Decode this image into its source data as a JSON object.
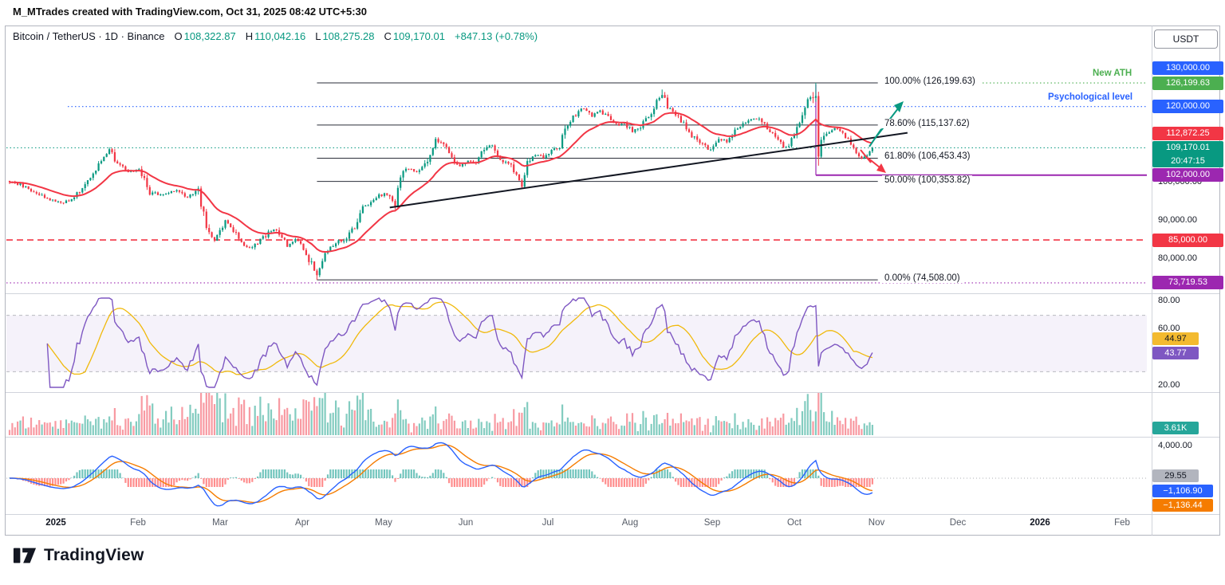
{
  "attribution": "M_MTrades created with TradingView.com, Oct 31, 2025 08:42 UTC+5:30",
  "sym": {
    "title": "Bitcoin / TetherUS · 1D · Binance",
    "o_k": "O",
    "o_v": "108,322.87",
    "h_k": "H",
    "h_v": "110,042.16",
    "l_k": "L",
    "l_v": "108,275.28",
    "c_k": "C",
    "c_v": "109,170.01",
    "chg": "+847.13 (+0.78%)",
    "currency": "USDT"
  },
  "annotations": {
    "new_ath": "New ATH",
    "psych_level": "Psychological level",
    "fib_labels": [
      {
        "label": "100.00% (126,199.63)",
        "price": 126199.63
      },
      {
        "label": "78.60% (115,137.62)",
        "price": 115137.62
      },
      {
        "label": "61.80% (106,453.43)",
        "price": 106453.43
      },
      {
        "label": "50.00% (100,353.82)",
        "price": 100353.82
      },
      {
        "label": "0.00% (74,508.00)",
        "price": 74508.0
      }
    ]
  },
  "price_axis": [
    {
      "text": "130,000.00",
      "price": 130000,
      "bg": "#2962FF"
    },
    {
      "text": "126,199.63",
      "price": 126199.63,
      "bg": "#4CAF50"
    },
    {
      "text": "120,000.00",
      "price": 120000,
      "bg": "#2962FF"
    },
    {
      "text": "112,872.25",
      "price": 112872.25,
      "bg": "#F23645"
    },
    {
      "text": "109,170.01",
      "price": 109170.01,
      "bg": "#089981",
      "countdown": "20:47:15"
    },
    {
      "text": "102,000.00",
      "price": 102000,
      "bg": "#9C27B0"
    },
    {
      "text": "100,000.00",
      "price": 100000
    },
    {
      "text": "90,000.00",
      "price": 90000
    },
    {
      "text": "85,000.00",
      "price": 85000,
      "bg": "#F23645"
    },
    {
      "text": "80,000.00",
      "price": 80000
    },
    {
      "text": "73,719.53",
      "price": 73719.53,
      "bg": "#9C27B0"
    }
  ],
  "indicators": {
    "rsi": {
      "labels": [
        {
          "text": "80.00",
          "value": 80
        },
        {
          "text": "60.00",
          "value": 60
        },
        {
          "text": "20.00",
          "value": 20
        }
      ],
      "badges": [
        {
          "text": "44.97",
          "value": 44.97,
          "bg": "#F3BA2F",
          "fg": "#131722"
        },
        {
          "text": "43.77",
          "value": 43.77,
          "bg": "#7E57C2",
          "fg": "#ffffff"
        }
      ]
    },
    "volume": {
      "badge": {
        "text": "3.61K",
        "bg": "#26A69A"
      }
    },
    "macd": {
      "axis_label": {
        "text": "4,000.00",
        "value": 4000
      },
      "badges": [
        {
          "text": "29.55",
          "bg": "#B2B5BE",
          "fg": "#131722"
        },
        {
          "text": "−1,106.90",
          "bg": "#2962FF",
          "fg": "#ffffff"
        },
        {
          "text": "−1,136.44",
          "bg": "#F57C00",
          "fg": "#ffffff"
        }
      ]
    }
  },
  "time_axis": [
    {
      "text": "2025",
      "year": true
    },
    {
      "text": "Feb"
    },
    {
      "text": "Mar"
    },
    {
      "text": "Apr"
    },
    {
      "text": "May"
    },
    {
      "text": "Jun"
    },
    {
      "text": "Jul"
    },
    {
      "text": "Aug"
    },
    {
      "text": "Sep"
    },
    {
      "text": "Oct"
    },
    {
      "text": "Nov"
    },
    {
      "text": "Dec"
    },
    {
      "text": "2026",
      "year": true
    },
    {
      "text": "Feb"
    }
  ],
  "logo": {
    "text": "TradingView"
  },
  "chart_data": {
    "type": "candlestick",
    "title": "Bitcoin / TetherUS 1D Binance",
    "x_axis": [
      "2025",
      "Feb",
      "Mar",
      "Apr",
      "May",
      "Jun",
      "Jul",
      "Aug",
      "Sep",
      "Oct",
      "Nov",
      "Dec",
      "2026",
      "Feb"
    ],
    "y_axis_range": [
      72000,
      132000
    ],
    "y_axis_ticks": [
      130000,
      120000,
      110000,
      100000,
      90000,
      80000
    ],
    "ohlc_current": {
      "open": 108322.87,
      "high": 110042.16,
      "low": 108275.28,
      "close": 109170.01,
      "change": 847.13,
      "change_pct": 0.78
    },
    "levels": {
      "ath": 126199.63,
      "psychological": 120000,
      "fib_100": 126199.63,
      "fib_786": 115137.62,
      "fib_618": 106453.43,
      "fib_50": 100353.82,
      "fib_0": 74508.0,
      "red_dashed_support": 85000,
      "purple_level": 102000,
      "purple_bottom": 73719.53,
      "trendline_target": 112872.25,
      "current": 109170.01
    },
    "indicator_values": {
      "rsi": 43.77,
      "rsi_ma": 44.97,
      "volume": "3.61K",
      "macd_hist": 29.55,
      "macd": -1106.9,
      "macd_signal": -1136.44
    },
    "price_path_anchors": [
      [
        0,
        100500
      ],
      [
        8,
        98200
      ],
      [
        14,
        95800
      ],
      [
        20,
        94500
      ],
      [
        26,
        97500
      ],
      [
        31,
        102500
      ],
      [
        35,
        106800
      ],
      [
        37,
        109000
      ],
      [
        40,
        105000
      ],
      [
        44,
        102800
      ],
      [
        48,
        104000
      ],
      [
        52,
        97500
      ],
      [
        57,
        96800
      ],
      [
        62,
        97800
      ],
      [
        66,
        96200
      ],
      [
        70,
        98500
      ],
      [
        73,
        88000
      ],
      [
        76,
        84600
      ],
      [
        80,
        90000
      ],
      [
        84,
        86500
      ],
      [
        88,
        82800
      ],
      [
        92,
        84200
      ],
      [
        96,
        86800
      ],
      [
        99,
        87800
      ],
      [
        103,
        83500
      ],
      [
        106,
        85200
      ],
      [
        109,
        82500
      ],
      [
        112,
        78500
      ],
      [
        114,
        76200
      ],
      [
        117,
        81500
      ],
      [
        121,
        84500
      ],
      [
        125,
        85200
      ],
      [
        128,
        88500
      ],
      [
        131,
        93800
      ],
      [
        134,
        94500
      ],
      [
        137,
        96500
      ],
      [
        140,
        97200
      ],
      [
        143,
        94200
      ],
      [
        146,
        103800
      ],
      [
        149,
        103500
      ],
      [
        152,
        102800
      ],
      [
        155,
        106400
      ],
      [
        158,
        111200
      ],
      [
        161,
        109800
      ],
      [
        164,
        106500
      ],
      [
        167,
        104500
      ],
      [
        170,
        105800
      ],
      [
        173,
        105300
      ],
      [
        176,
        108800
      ],
      [
        179,
        110200
      ],
      [
        182,
        106200
      ],
      [
        185,
        105200
      ],
      [
        188,
        101800
      ],
      [
        190,
        99200
      ],
      [
        192,
        104800
      ],
      [
        195,
        107300
      ],
      [
        198,
        107000
      ],
      [
        201,
        108600
      ],
      [
        204,
        109700
      ],
      [
        207,
        115800
      ],
      [
        210,
        117800
      ],
      [
        213,
        119800
      ],
      [
        216,
        117500
      ],
      [
        219,
        118800
      ],
      [
        222,
        117200
      ],
      [
        225,
        115300
      ],
      [
        228,
        115800
      ],
      [
        231,
        113500
      ],
      [
        234,
        114800
      ],
      [
        237,
        117300
      ],
      [
        240,
        121000
      ],
      [
        242,
        123300
      ],
      [
        245,
        118800
      ],
      [
        248,
        117400
      ],
      [
        251,
        113800
      ],
      [
        254,
        111500
      ],
      [
        257,
        109800
      ],
      [
        260,
        108400
      ],
      [
        263,
        111200
      ],
      [
        266,
        110800
      ],
      [
        269,
        113500
      ],
      [
        272,
        115800
      ],
      [
        275,
        116500
      ],
      [
        278,
        117000
      ],
      [
        281,
        114200
      ],
      [
        284,
        112000
      ],
      [
        287,
        109300
      ],
      [
        289,
        109800
      ],
      [
        291,
        112500
      ],
      [
        293,
        115500
      ],
      [
        295,
        120200
      ],
      [
        297,
        122500
      ],
      [
        299,
        121800
      ],
      [
        300,
        108000
      ],
      [
        302,
        112500
      ],
      [
        306,
        114100
      ],
      [
        310,
        112100
      ],
      [
        314,
        108100
      ],
      [
        316,
        106400
      ],
      [
        318,
        107400
      ],
      [
        320,
        109170
      ]
    ],
    "forced_points": {
      "ath_day": 299,
      "ath_high": 126199.63,
      "low_day": 114,
      "low_price": 74508.0,
      "aug_high_day": 242,
      "aug_high": 124474.0
    },
    "trendline": {
      "d1": 141,
      "p1": 93500,
      "d2": 333,
      "p2": 113100
    },
    "fib_line_span_days": [
      114,
      322
    ]
  }
}
